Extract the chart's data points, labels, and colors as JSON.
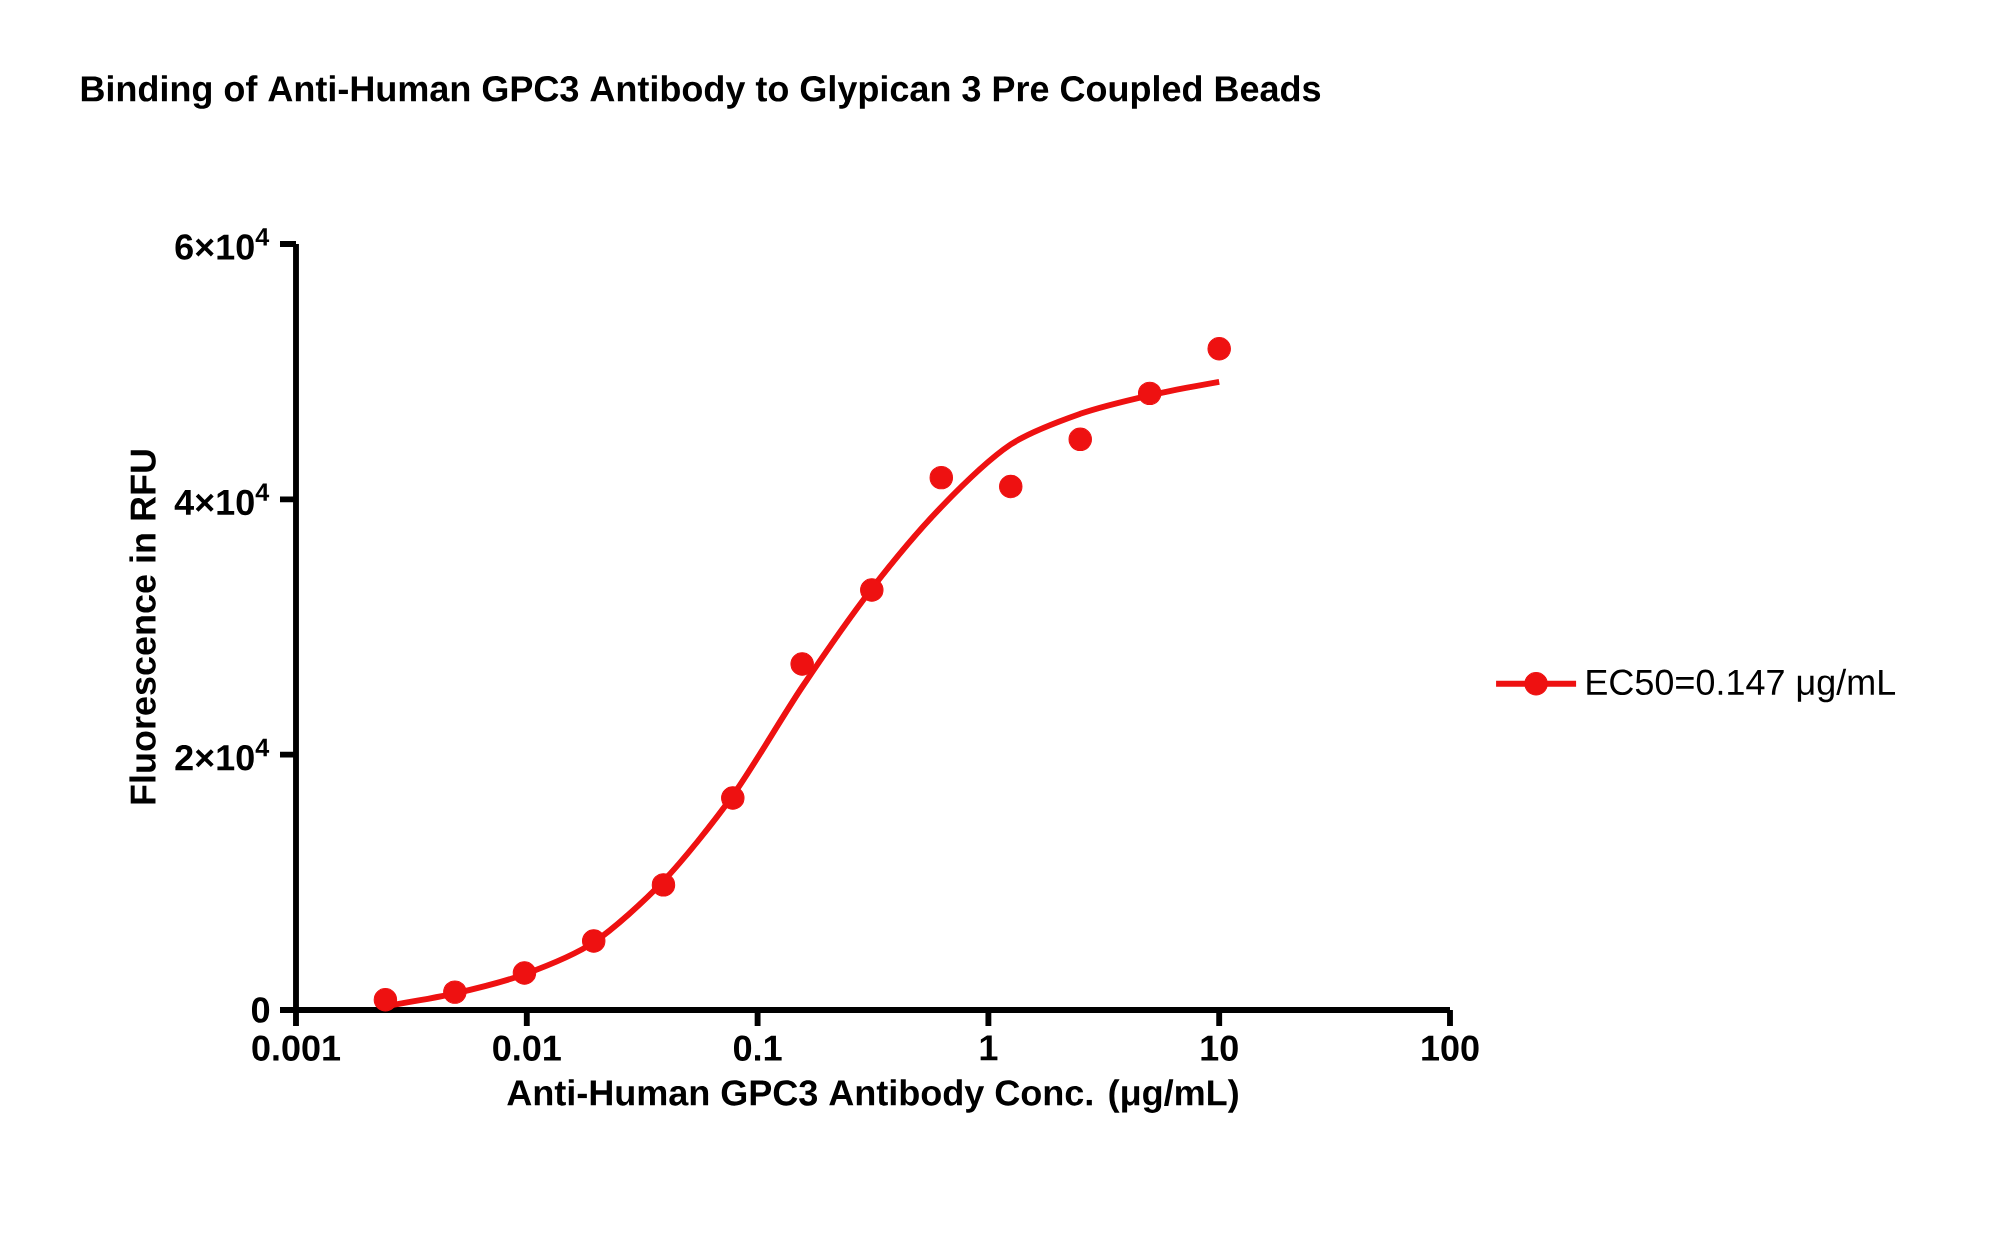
{
  "chart_data": {
    "type": "scatter",
    "title": "Binding of Anti-Human GPC3 Antibody to Glypican 3 Pre Coupled Beads",
    "xlabel": "Anti-Human GPC3 Antibody Conc. (μg/mL)",
    "ylabel": "Fluorescence in RFU",
    "log": "x",
    "xlim": [
      0.001,
      100
    ],
    "xticks": [
      0.001,
      0.01,
      0.1,
      1,
      10,
      100
    ],
    "ylim": [
      0,
      60000
    ],
    "yticks": [
      0,
      {
        "value": 20000,
        "label": "2×10$^{4}$"
      },
      {
        "value": 40000,
        "label": "4×10$^{4}$"
      },
      {
        "value": 60000,
        "label": "6×10$^{4}$"
      }
    ],
    "grid": false,
    "legend": "right",
    "series": [
      {
        "name": "EC50=0.147 μg/mL",
        "color": "#ee1111",
        "marker": "circle",
        "x": [
          0.00244,
          0.00488,
          0.00977,
          0.0195,
          0.0391,
          0.0781,
          0.156,
          0.3125,
          0.625,
          1.25,
          2.5,
          5,
          10
        ],
        "values": [
          800,
          1400,
          2900,
          5400,
          9800,
          16600,
          27100,
          32900,
          41700,
          41000,
          44700,
          48300,
          51800
        ]
      },
      {
        "type": "line",
        "color": "#ee1111",
        "marker": "none",
        "x": [
          0.00244,
          0.00488,
          0.00977,
          0.0195,
          0.0391,
          0.0781,
          0.156,
          0.3125,
          0.625,
          1.25,
          2.5,
          5,
          10
        ],
        "values": [
          300,
          1300,
          2800,
          5300,
          10100,
          16800,
          25300,
          33000,
          39400,
          44300,
          46700,
          48150,
          49200
        ]
      }
    ]
  }
}
